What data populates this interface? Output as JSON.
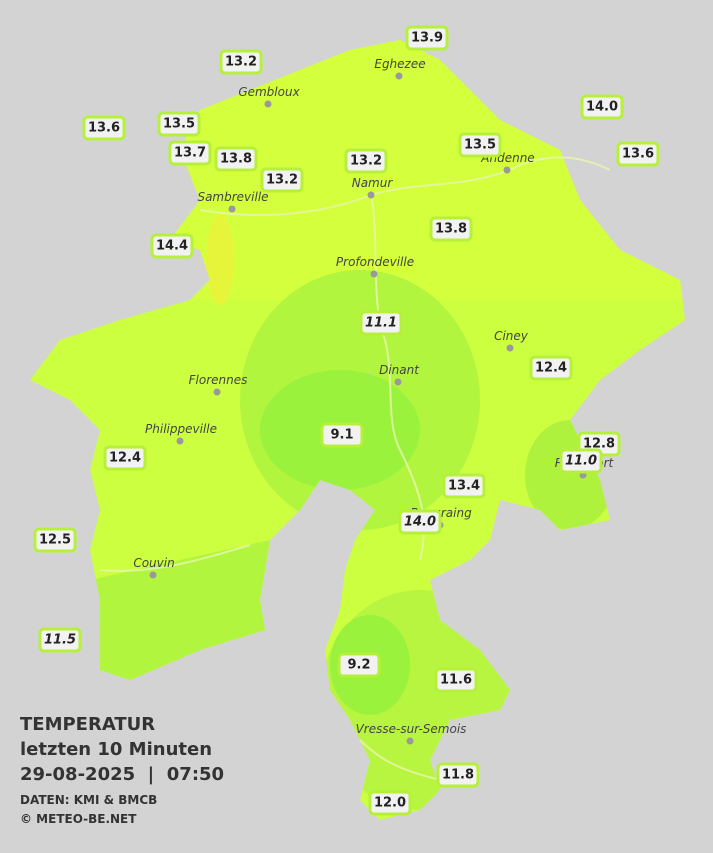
{
  "legend": {
    "title": "TEMPERATUR",
    "period": "letzten 10 Minuten",
    "datetime": "29-08-2025  |  07:50",
    "source": "DATEN: KMI & BMCB",
    "copyright": "© METEO-BE.NET"
  },
  "cities": [
    {
      "name": "Eghezee"
    },
    {
      "name": "Gembloux"
    },
    {
      "name": "Andenne"
    },
    {
      "name": "Namur"
    },
    {
      "name": "Sambreville"
    },
    {
      "name": "Profondeville"
    },
    {
      "name": "Ciney"
    },
    {
      "name": "Florennes"
    },
    {
      "name": "Dinant"
    },
    {
      "name": "Philippeville"
    },
    {
      "name": "Rochefort"
    },
    {
      "name": "Beauraing"
    },
    {
      "name": "Couvin"
    },
    {
      "name": "Vresse-sur-Semois"
    }
  ],
  "stations": [
    {
      "label": "13.9"
    },
    {
      "label": "13.2"
    },
    {
      "label": "14.0"
    },
    {
      "label": "13.6"
    },
    {
      "label": "13.5"
    },
    {
      "label": "13.5"
    },
    {
      "label": "13.6"
    },
    {
      "label": "13.7"
    },
    {
      "label": "13.8"
    },
    {
      "label": "13.2"
    },
    {
      "label": "13.2"
    },
    {
      "label": "13.8"
    },
    {
      "label": "14.4"
    },
    {
      "label": "11.1"
    },
    {
      "label": "12.4"
    },
    {
      "label": "9.1"
    },
    {
      "label": "12.8"
    },
    {
      "label": "11.0"
    },
    {
      "label": "12.4"
    },
    {
      "label": "13.4"
    },
    {
      "label": "14.0"
    },
    {
      "label": "12.5"
    },
    {
      "label": "11.5"
    },
    {
      "label": "9.2"
    },
    {
      "label": "11.6"
    },
    {
      "label": "11.8"
    },
    {
      "label": "12.0"
    }
  ]
}
